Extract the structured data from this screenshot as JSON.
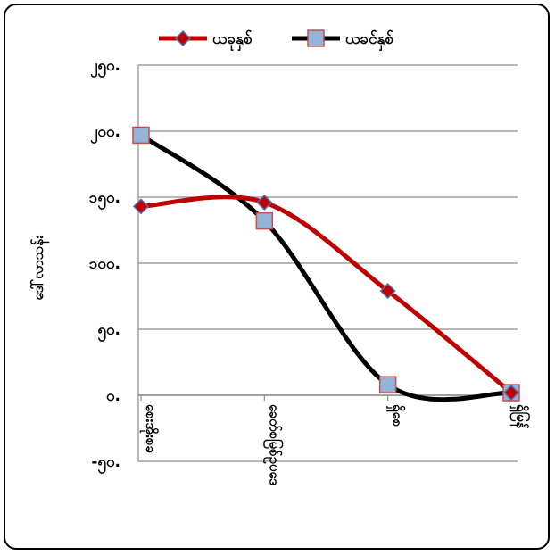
{
  "chart_data": {
    "type": "line",
    "smooth": true,
    "categories": [
      "စေးအိုးစခ",
      "ခေတ်စမြစ်ဥပဒေ",
      "ရှိစေ",
      "ရှိမြန်"
    ],
    "series": [
      {
        "name": "ယခုနှစ်",
        "values": [
          143,
          146,
          79,
          2
        ],
        "color": "#c00000",
        "marker": "diamond"
      },
      {
        "name": "ယခင်နှစ်",
        "values": [
          197,
          132,
          8,
          2
        ],
        "color": "#000000",
        "marker": "square"
      }
    ],
    "ylabel": "ဒေါ်လာသန်း",
    "ylim": [
      -50,
      250
    ],
    "yticks": [
      -50,
      0,
      50,
      100,
      150,
      200,
      250
    ],
    "ytick_labels": [
      "-၅၀.",
      "၀.",
      "၅၀.",
      "၁၀၀.",
      "၁၅၀.",
      "၂၀၀.",
      "၂၅၀."
    ],
    "legend": "top",
    "grid": true,
    "marker_fill": "#95b3d7"
  }
}
